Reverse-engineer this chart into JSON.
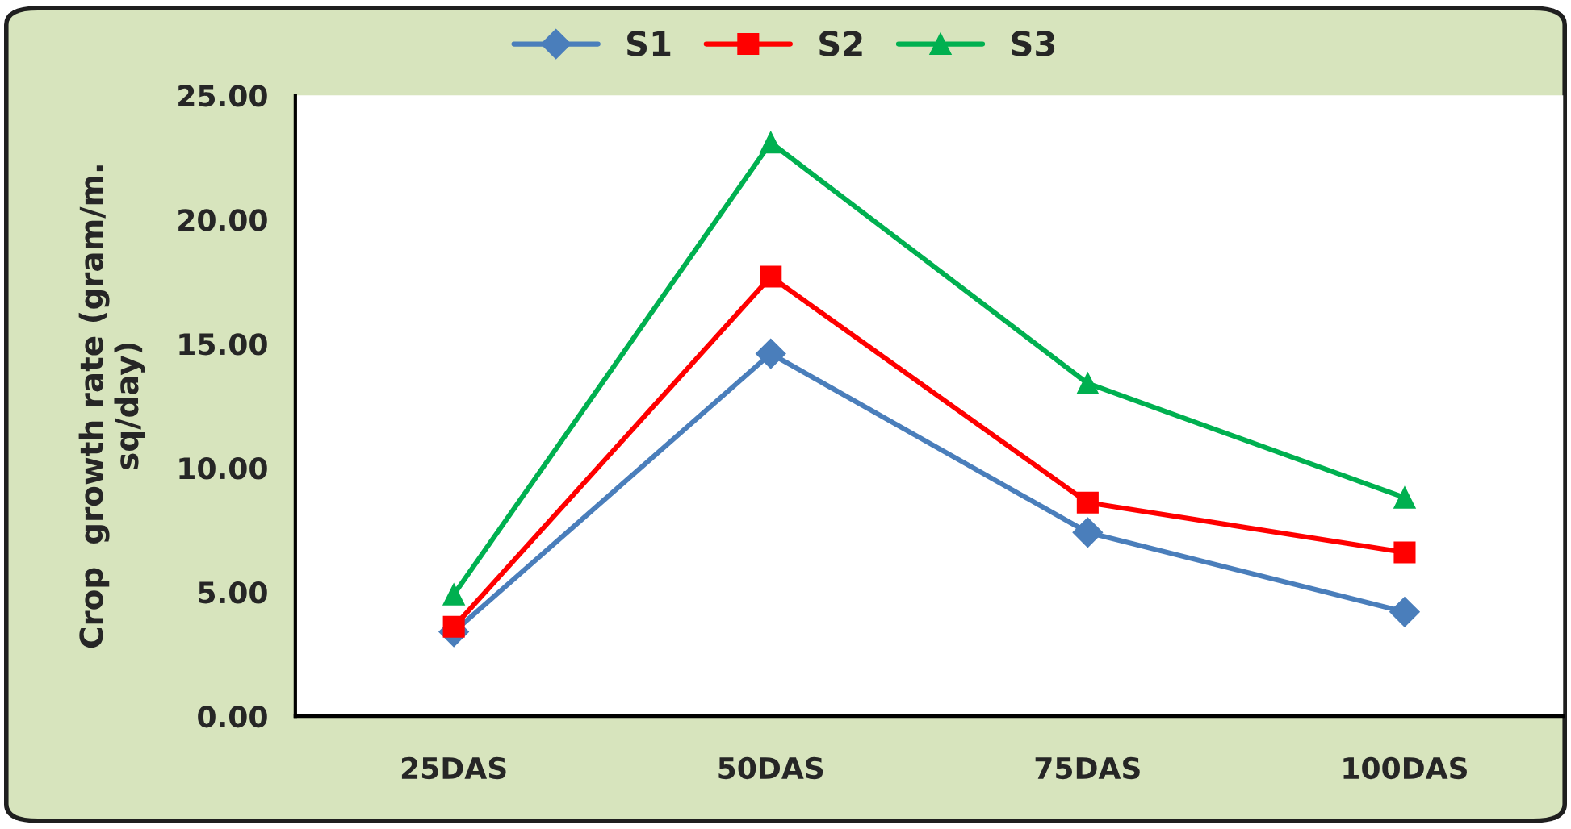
{
  "chart_data": {
    "type": "line",
    "ylabel": "Crop  growth rate (gram/m.\nsq/day)",
    "categories": [
      "25DAS",
      "50DAS",
      "75DAS",
      "100DAS"
    ],
    "series": [
      {
        "name": "S1",
        "color": "#4a7ebb",
        "marker": "diamond",
        "values": [
          3.4,
          14.6,
          7.4,
          4.2
        ]
      },
      {
        "name": "S2",
        "color": "#ff0000",
        "marker": "square",
        "values": [
          3.6,
          17.7,
          8.6,
          6.6
        ]
      },
      {
        "name": "S3",
        "color": "#00b050",
        "marker": "triangle",
        "values": [
          4.9,
          23.1,
          13.4,
          8.8
        ]
      }
    ],
    "ylim": [
      0,
      25
    ],
    "yticks": [
      {
        "value": 0,
        "label": "0.00"
      },
      {
        "value": 5,
        "label": "5.00"
      },
      {
        "value": 10,
        "label": "10.00"
      },
      {
        "value": 15,
        "label": "15.00"
      },
      {
        "value": 20,
        "label": "20.00"
      },
      {
        "value": 25,
        "label": "25.00"
      }
    ],
    "grid": false,
    "legend": "top",
    "line_style": "solid"
  }
}
